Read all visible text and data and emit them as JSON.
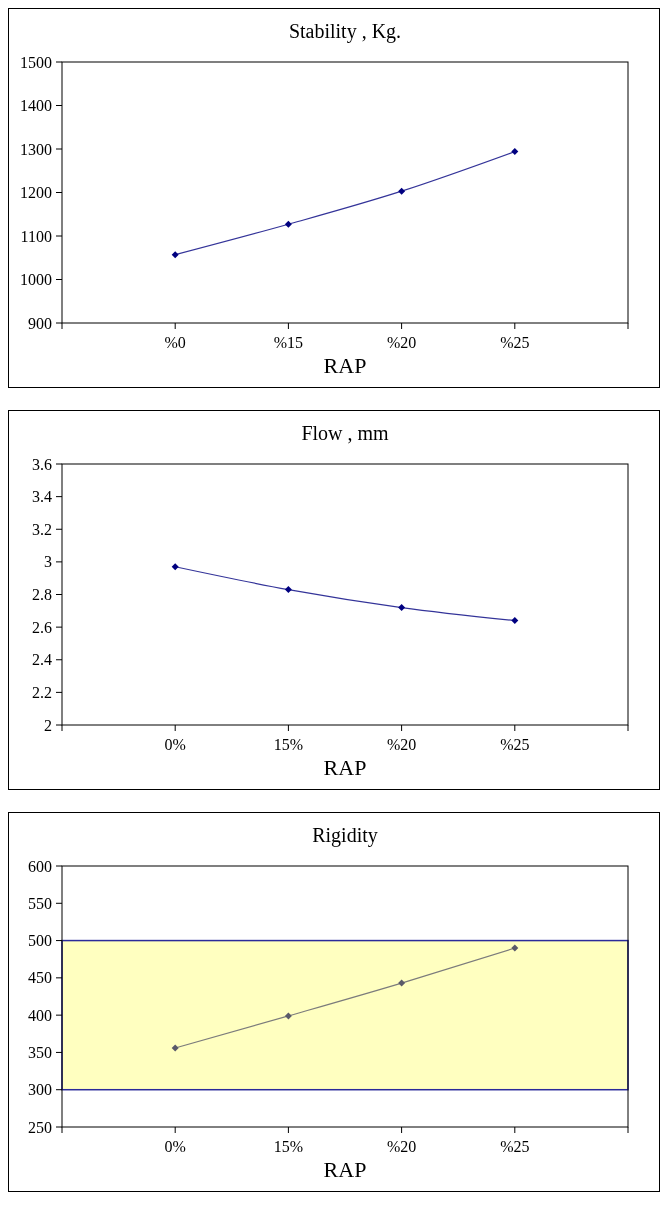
{
  "chart_data": [
    {
      "type": "line",
      "title": "Stability , Kg.",
      "xlabel": "RAP",
      "categories": [
        null,
        "%0",
        "%15",
        "%20",
        "%25",
        null
      ],
      "series": [
        {
          "color": "#000080",
          "values": [
            null,
            1057,
            1127,
            1203,
            1294,
            null
          ]
        }
      ],
      "ylim": [
        900,
        1500
      ],
      "yticks": [
        900,
        1000,
        1100,
        1200,
        1300,
        1400,
        1500
      ],
      "marker": "diamond",
      "grid": false
    },
    {
      "type": "line",
      "title": "Flow , mm",
      "xlabel": "RAP",
      "categories": [
        null,
        "0%",
        "15%",
        "%20",
        "%25",
        null
      ],
      "series": [
        {
          "color": "#000080",
          "values": [
            null,
            2.97,
            2.83,
            2.72,
            2.64,
            null
          ]
        }
      ],
      "ylim": [
        2,
        3.6
      ],
      "yticks": [
        2,
        2.2,
        2.4,
        2.6,
        2.8,
        3,
        3.2,
        3.4,
        3.6
      ],
      "marker": "diamond",
      "grid": false
    },
    {
      "type": "line",
      "title": "Rigidity",
      "xlabel": "RAP",
      "categories": [
        null,
        "0%",
        "15%",
        "%20",
        "%25",
        null
      ],
      "series": [
        {
          "color": "#5a5a6a",
          "values": [
            null,
            356,
            399,
            443,
            490,
            null
          ]
        }
      ],
      "ylim": [
        250,
        600
      ],
      "yticks": [
        250,
        300,
        350,
        400,
        450,
        500,
        550,
        600
      ],
      "bands": [
        {
          "axis": "y",
          "from": 300,
          "to": 500,
          "color": "#ffffc0"
        }
      ],
      "marker": "diamond",
      "grid": false
    }
  ]
}
